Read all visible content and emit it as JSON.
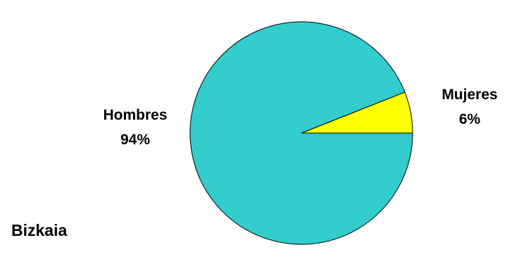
{
  "chart_data": {
    "type": "pie",
    "region": "Bizkaia",
    "slices": [
      {
        "name": "Mujeres",
        "value": 6,
        "label": "6%",
        "color": "#ffff00"
      },
      {
        "name": "Hombres",
        "value": 94,
        "label": "94%",
        "color": "#33cccc"
      }
    ],
    "start_angle_deg": 0,
    "direction": "counterclockwise",
    "outline_color": "#000000"
  }
}
